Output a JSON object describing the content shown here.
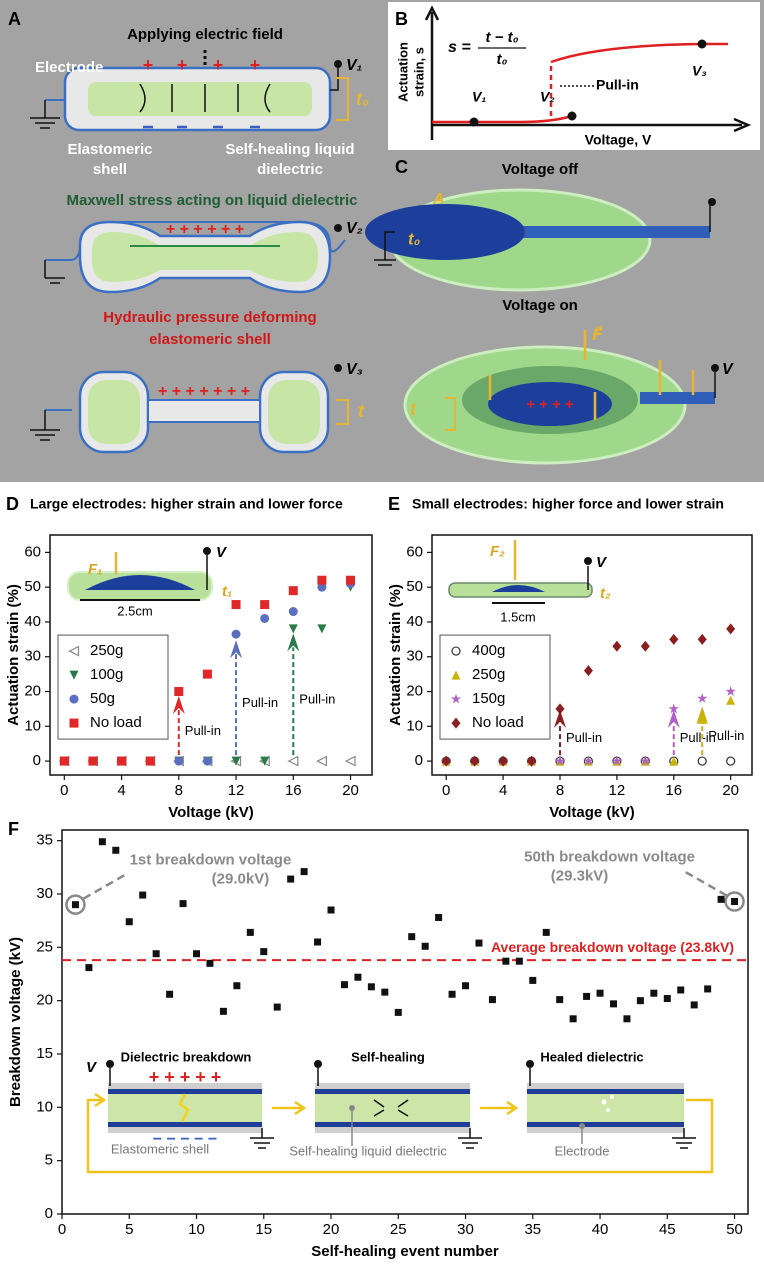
{
  "panel_a": {
    "label": "A",
    "title": "Applying electric field",
    "electrode": "Electrode",
    "shell": [
      "Elastomeric",
      "shell"
    ],
    "dielectric": [
      "Self-healing liquid",
      "dielectric"
    ],
    "maxwell": "Maxwell stress acting on liquid dielectric",
    "hydraulic": [
      "Hydraulic pressure deforming",
      "elastomeric shell"
    ],
    "v1": "V₁",
    "v2": "V₂",
    "v3": "V₃",
    "t0": "t₀",
    "t": "t"
  },
  "panel_b": {
    "label": "B",
    "formula_lhs": "s =",
    "formula_num": "t − t₀",
    "formula_den": "t₀",
    "y_label": [
      "Actuation",
      "strain, s"
    ],
    "x_label": "Voltage, V",
    "pull_in": "Pull-in",
    "v1": "V₁",
    "v2": "V₂",
    "v3": "V₃"
  },
  "panel_c": {
    "label": "C",
    "voltage_off": "Voltage off",
    "voltage_on": "Voltage on",
    "area": "A",
    "force": "F⃗",
    "t0": "t₀",
    "t": "t",
    "v": "V"
  },
  "chart_data": [
    {
      "type": "scatter",
      "label": "D",
      "title": "Large electrodes: higher strain and lower force",
      "x_label": "Voltage (kV)",
      "y_label": "Actuation strain (%)",
      "x": [
        0,
        2,
        4,
        6,
        8,
        10,
        12,
        14,
        16,
        18,
        20
      ],
      "xlim": [
        -1,
        21.5
      ],
      "ylim": [
        -4,
        65
      ],
      "xticks": [
        0,
        4,
        8,
        12,
        16,
        20
      ],
      "yticks": [
        0,
        10,
        20,
        30,
        40,
        50,
        60
      ],
      "legend": "lower left",
      "series": [
        {
          "name": "250g",
          "color": "#888888",
          "marker": "triangle-left-open",
          "values": [
            0,
            0,
            0,
            0,
            0,
            0,
            0,
            0,
            0,
            0,
            0
          ]
        },
        {
          "name": "100g",
          "color": "#2a7a4a",
          "marker": "triangle-down",
          "values": [
            0,
            0,
            0,
            0,
            0,
            0,
            0,
            0,
            38,
            38,
            50
          ]
        },
        {
          "name": "50g",
          "color": "#5a6fc0",
          "marker": "circle",
          "values": [
            0,
            0,
            0,
            0,
            0,
            0,
            36.5,
            41,
            43,
            50,
            51
          ]
        },
        {
          "name": "No load",
          "color": "#e02828",
          "marker": "square",
          "values": [
            0,
            0,
            0,
            0,
            20,
            25,
            45,
            45,
            49,
            52,
            52
          ]
        }
      ],
      "annotations": [
        {
          "text": "Pull-in",
          "x": 8,
          "y": 17,
          "color": "#e02828"
        },
        {
          "text": "Pull-in",
          "x": 12,
          "y": 33,
          "color": "#5a6fc0"
        },
        {
          "text": "Pull-in",
          "x": 16,
          "y": 35,
          "color": "#2a7a4a"
        }
      ],
      "inset": {
        "force": "F₁",
        "voltage": "V",
        "size": "2.5cm",
        "thickness": "t₁"
      }
    },
    {
      "type": "scatter",
      "label": "E",
      "title": "Small electrodes: higher force and lower strain",
      "x_label": "Voltage (kV)",
      "y_label": "Actuation strain (%)",
      "x": [
        0,
        2,
        4,
        6,
        8,
        10,
        12,
        14,
        16,
        18,
        20
      ],
      "xlim": [
        -1,
        21.5
      ],
      "ylim": [
        -4,
        65
      ],
      "xticks": [
        0,
        4,
        8,
        12,
        16,
        20
      ],
      "yticks": [
        0,
        10,
        20,
        30,
        40,
        50,
        60
      ],
      "legend": "lower left",
      "series": [
        {
          "name": "400g",
          "color": "#333333",
          "marker": "circle-open",
          "values": [
            0,
            0,
            0,
            0,
            0,
            0,
            0,
            0,
            0,
            0,
            0
          ]
        },
        {
          "name": "250g",
          "color": "#c9b20c",
          "marker": "triangle-up",
          "values": [
            0,
            0,
            0,
            0,
            0,
            0,
            0,
            0,
            0,
            12,
            17.5
          ]
        },
        {
          "name": "150g",
          "color": "#b060c8",
          "marker": "star",
          "values": [
            0,
            0,
            0,
            0,
            0,
            0,
            0,
            0,
            15,
            18,
            20
          ]
        },
        {
          "name": "No load",
          "color": "#8b1e1e",
          "marker": "diamond",
          "values": [
            0,
            0,
            0,
            0,
            15,
            26,
            33,
            33,
            35,
            35,
            38
          ]
        }
      ],
      "annotations": [
        {
          "text": "Pull-in",
          "x": 8,
          "y": 13,
          "color": "#8b1e1e"
        },
        {
          "text": "Pull-in",
          "x": 16,
          "y": 13,
          "color": "#b060c8"
        },
        {
          "text": "Pull-in",
          "x": 18,
          "y": 14,
          "color": "#c9b20c"
        }
      ],
      "inset": {
        "force": "F₂",
        "voltage": "V",
        "size": "1.5cm",
        "thickness": "t₂"
      }
    },
    {
      "type": "scatter",
      "label": "F",
      "x_label": "Self-healing event number",
      "y_label": "Breakdown voltage (kV)",
      "x": [
        1,
        2,
        3,
        4,
        5,
        6,
        7,
        8,
        9,
        10,
        11,
        12,
        13,
        14,
        15,
        16,
        17,
        18,
        19,
        20,
        21,
        22,
        23,
        24,
        25,
        26,
        27,
        28,
        29,
        30,
        31,
        32,
        33,
        34,
        35,
        36,
        37,
        38,
        39,
        40,
        41,
        42,
        43,
        44,
        45,
        46,
        47,
        48,
        49,
        50
      ],
      "values": [
        29.0,
        23.1,
        34.9,
        34.1,
        27.4,
        29.9,
        24.4,
        20.6,
        29.1,
        24.4,
        23.5,
        19.0,
        21.4,
        26.4,
        24.6,
        19.4,
        31.4,
        32.1,
        25.5,
        28.5,
        21.5,
        22.2,
        21.3,
        20.8,
        18.9,
        26.0,
        25.1,
        27.8,
        20.6,
        21.4,
        25.4,
        20.1,
        23.7,
        23.7,
        21.9,
        26.4,
        20.1,
        18.3,
        20.4,
        20.7,
        19.7,
        18.3,
        20.0,
        20.7,
        20.2,
        21.0,
        19.6,
        21.1,
        29.5,
        29.3
      ],
      "color": "#111111",
      "xlim": [
        0,
        51
      ],
      "ylim": [
        0,
        36
      ],
      "xticks": [
        0,
        5,
        10,
        15,
        20,
        25,
        30,
        35,
        40,
        45,
        50
      ],
      "yticks": [
        0,
        5,
        10,
        15,
        20,
        25,
        30,
        35
      ],
      "reference_line": {
        "value": 23.8,
        "label": "Average breakdown voltage (23.8kV)",
        "color": "#e02020"
      },
      "annotations": [
        {
          "text": [
            "1st breakdown voltage",
            "(29.0kV)"
          ],
          "point": 0
        },
        {
          "text": [
            "50th breakdown voltage",
            "(29.3kV)"
          ],
          "point": 49
        }
      ],
      "inset": {
        "steps": [
          "Dielectric breakdown",
          "Self-healing",
          "Healed dielectric"
        ],
        "callouts": [
          "Elastomeric shell",
          "Self-healing liquid dielectric",
          "Electrode"
        ],
        "voltage": "V"
      }
    }
  ]
}
